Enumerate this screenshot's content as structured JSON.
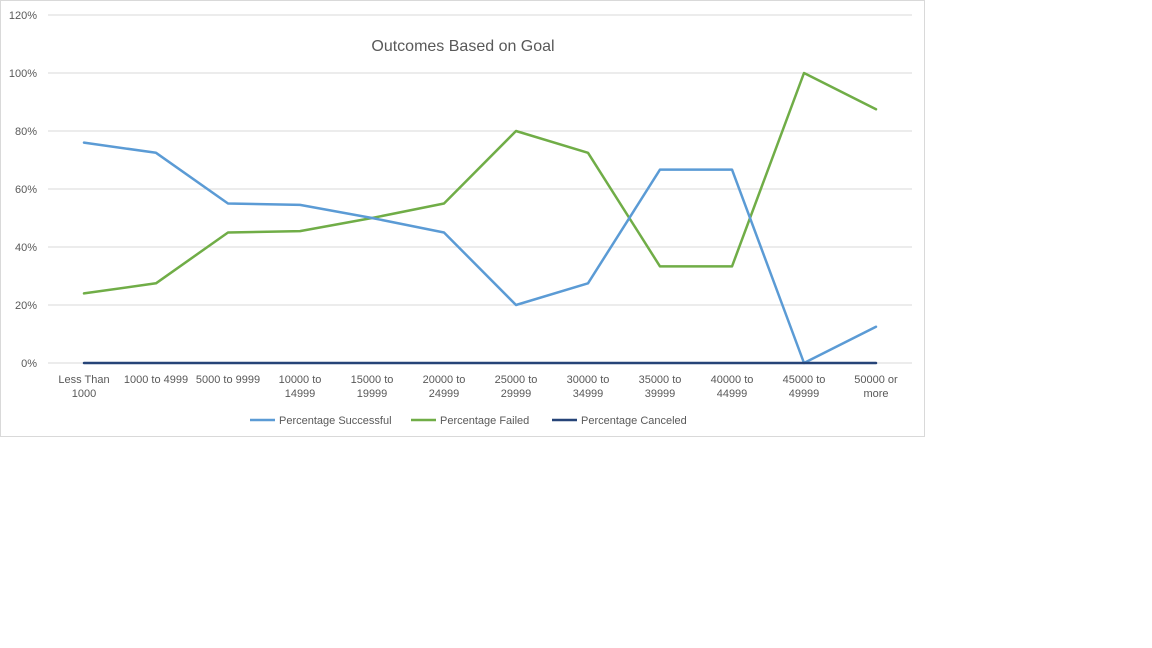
{
  "chart_data": {
    "type": "line",
    "title": "Outcomes Based on Goal",
    "xlabel": "",
    "ylabel": "",
    "categories": [
      [
        "Less Than",
        "1000"
      ],
      [
        "1000 to 4999"
      ],
      [
        "5000 to 9999"
      ],
      [
        "10000 to",
        "14999"
      ],
      [
        "15000 to",
        "19999"
      ],
      [
        "20000 to",
        "24999"
      ],
      [
        "25000 to",
        "29999"
      ],
      [
        "30000 to",
        "34999"
      ],
      [
        "35000 to",
        "39999"
      ],
      [
        "40000 to",
        "44999"
      ],
      [
        "45000 to",
        "49999"
      ],
      [
        "50000 or",
        "more"
      ]
    ],
    "ylim": [
      0,
      120
    ],
    "y_ticks": [
      0,
      20,
      40,
      60,
      80,
      100,
      120
    ],
    "y_tick_labels": [
      "0%",
      "20%",
      "40%",
      "60%",
      "80%",
      "100%",
      "120%"
    ],
    "grid": true,
    "legend_position": "bottom",
    "series": [
      {
        "name": "Percentage Successful",
        "color": "#5B9BD5",
        "values": [
          76,
          72.5,
          55,
          54.5,
          50,
          45,
          20,
          27.5,
          66.7,
          66.7,
          0,
          12.5
        ]
      },
      {
        "name": "Percentage Failed",
        "color": "#70AD47",
        "values": [
          24,
          27.5,
          45,
          45.5,
          50,
          55,
          80,
          72.5,
          33.3,
          33.3,
          100,
          87.5
        ]
      },
      {
        "name": "Percentage Canceled",
        "color": "#264478",
        "values": [
          0,
          0,
          0,
          0,
          0,
          0,
          0,
          0,
          0,
          0,
          0,
          0
        ]
      }
    ]
  }
}
